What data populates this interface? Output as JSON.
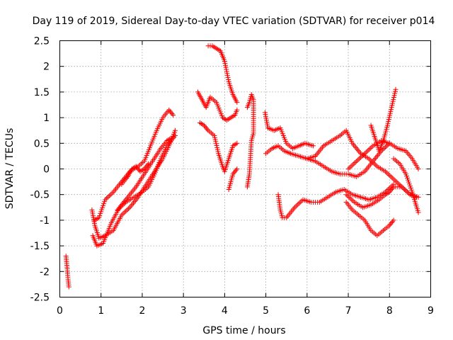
{
  "chart_data": {
    "type": "scatter",
    "title": "Day 119 of 2019, Sidereal Day-to-day VTEC variation (SDTVAR) for receiver p014",
    "xlabel": "GPS time / hours",
    "ylabel": "SDTVAR / TECUs",
    "xlim": [
      0,
      9
    ],
    "ylim": [
      -2.5,
      2.5
    ],
    "xticks": [
      "0",
      "1",
      "2",
      "3",
      "4",
      "5",
      "6",
      "7",
      "8",
      "9"
    ],
    "yticks": [
      "-2.5",
      "-2",
      "-1.5",
      "-1",
      "-0.5",
      "0",
      "0.5",
      "1",
      "1.5",
      "2",
      "2.5"
    ],
    "grid": true,
    "marker": "plus",
    "color": "#ff0000",
    "series": [
      {
        "name": "s1",
        "x": [
          0.15,
          0.18,
          0.2,
          0.22
        ],
        "y": [
          -1.7,
          -1.95,
          -2.15,
          -2.3
        ]
      },
      {
        "name": "s2",
        "x": [
          0.78,
          0.85,
          0.95,
          1.1,
          1.3,
          1.5,
          1.7,
          1.9,
          2.1,
          2.3,
          2.5,
          2.65,
          2.8
        ],
        "y": [
          -0.8,
          -1.1,
          -1.35,
          -1.3,
          -1.2,
          -0.9,
          -0.75,
          -0.55,
          -0.3,
          -0.05,
          0.2,
          0.45,
          0.75
        ]
      },
      {
        "name": "s3",
        "x": [
          0.8,
          0.9,
          1.05,
          1.25,
          1.45,
          1.65,
          1.85,
          2.05,
          2.25,
          2.45,
          2.6,
          2.7
        ],
        "y": [
          -1.3,
          -1.5,
          -1.45,
          -1.05,
          -0.75,
          -0.55,
          -0.35,
          -0.1,
          0.15,
          0.4,
          0.55,
          0.6
        ]
      },
      {
        "name": "s4",
        "x": [
          0.85,
          0.95,
          1.1,
          1.3,
          1.5,
          1.7,
          1.9,
          2.05,
          2.2,
          2.35,
          2.5,
          2.65,
          2.75
        ],
        "y": [
          -1.0,
          -0.95,
          -0.6,
          -0.45,
          -0.25,
          -0.05,
          0.05,
          0.15,
          0.45,
          0.75,
          1.0,
          1.15,
          1.05
        ]
      },
      {
        "name": "s5",
        "x": [
          1.4,
          1.6,
          1.8,
          2.0,
          2.15,
          2.3,
          2.45,
          2.6,
          2.8
        ],
        "y": [
          -0.8,
          -0.65,
          -0.55,
          -0.45,
          -0.35,
          -0.1,
          0.2,
          0.45,
          0.65
        ]
      },
      {
        "name": "s6",
        "x": [
          1.5,
          1.65,
          1.75,
          1.85,
          1.95,
          2.05,
          2.15
        ],
        "y": [
          -0.3,
          -0.15,
          0.0,
          0.05,
          -0.05,
          0.0,
          0.1
        ]
      },
      {
        "name": "s7",
        "x": [
          3.35,
          3.45,
          3.55,
          3.65,
          3.8,
          3.95,
          4.05,
          4.15,
          4.25,
          4.3
        ],
        "y": [
          1.5,
          1.35,
          1.2,
          1.4,
          1.3,
          1.0,
          0.95,
          1.0,
          1.05,
          1.15
        ]
      },
      {
        "name": "s8",
        "x": [
          3.4,
          3.5,
          3.6,
          3.75,
          3.85,
          3.95,
          4.0,
          4.1,
          4.2,
          4.3
        ],
        "y": [
          0.9,
          0.85,
          0.75,
          0.65,
          0.3,
          0.05,
          -0.05,
          0.2,
          0.45,
          0.5
        ]
      },
      {
        "name": "s9",
        "x": [
          3.6,
          3.7,
          3.8,
          3.9,
          4.0,
          4.05,
          4.1,
          4.2,
          4.3
        ],
        "y": [
          2.4,
          2.4,
          2.35,
          2.3,
          2.1,
          1.9,
          1.7,
          1.45,
          1.3
        ]
      },
      {
        "name": "s10",
        "x": [
          4.1,
          4.2,
          4.3
        ],
        "y": [
          -0.4,
          -0.1,
          0.0
        ]
      },
      {
        "name": "s11",
        "x": [
          4.55,
          4.6,
          4.65,
          4.7,
          4.7,
          4.65,
          4.6,
          4.55
        ],
        "y": [
          1.2,
          1.3,
          1.45,
          1.35,
          0.7,
          0.55,
          -0.1,
          -0.35
        ]
      },
      {
        "name": "s12",
        "x": [
          4.98,
          5.05,
          5.2,
          5.35,
          5.5,
          5.65,
          5.8,
          5.95,
          6.15
        ],
        "y": [
          1.1,
          0.8,
          0.75,
          0.8,
          0.5,
          0.4,
          0.45,
          0.5,
          0.45
        ]
      },
      {
        "name": "s13",
        "x": [
          5.0,
          5.15,
          5.3,
          5.45,
          5.6,
          5.8,
          6.0,
          6.2,
          6.4,
          6.6,
          6.8,
          7.0,
          7.2,
          7.4,
          7.6,
          7.8,
          8.0
        ],
        "y": [
          0.3,
          0.4,
          0.45,
          0.35,
          0.3,
          0.25,
          0.2,
          0.15,
          0.05,
          -0.05,
          -0.1,
          -0.1,
          -0.15,
          -0.05,
          0.15,
          0.35,
          0.5
        ]
      },
      {
        "name": "s14",
        "x": [
          5.3,
          5.35,
          5.4,
          5.5,
          5.7,
          5.9,
          6.1,
          6.3,
          6.5,
          6.7,
          6.9,
          7.1,
          7.3,
          7.5,
          7.7,
          7.9,
          8.1
        ],
        "y": [
          -0.5,
          -0.8,
          -0.95,
          -0.95,
          -0.75,
          -0.6,
          -0.65,
          -0.65,
          -0.55,
          -0.45,
          -0.4,
          -0.5,
          -0.55,
          -0.6,
          -0.55,
          -0.45,
          -0.3
        ]
      },
      {
        "name": "s15",
        "x": [
          6.0,
          6.2,
          6.4,
          6.6,
          6.8,
          6.95,
          7.1,
          7.3,
          7.5,
          7.7,
          7.9,
          8.1,
          8.3,
          8.5,
          8.7
        ],
        "y": [
          0.2,
          0.25,
          0.45,
          0.55,
          0.65,
          0.75,
          0.5,
          0.3,
          0.2,
          0.05,
          -0.05,
          -0.2,
          -0.35,
          -0.5,
          -0.55
        ]
      },
      {
        "name": "s16",
        "x": [
          6.95,
          7.1,
          7.25,
          7.4,
          7.55,
          7.7,
          7.85,
          8.0,
          8.1
        ],
        "y": [
          -0.65,
          -0.8,
          -0.9,
          -1.0,
          -1.2,
          -1.3,
          -1.2,
          -1.1,
          -1.0
        ]
      },
      {
        "name": "s17",
        "x": [
          6.95,
          7.15,
          7.35,
          7.55,
          7.75,
          7.9,
          8.0,
          8.1,
          8.3,
          8.5,
          8.65
        ],
        "y": [
          -0.5,
          -0.65,
          -0.75,
          -0.7,
          -0.6,
          -0.5,
          -0.45,
          -0.35,
          -0.35,
          -0.5,
          -0.55
        ]
      },
      {
        "name": "s18",
        "x": [
          7.0,
          7.2,
          7.4,
          7.6,
          7.8,
          8.0,
          8.2,
          8.4,
          8.55,
          8.7
        ],
        "y": [
          0.0,
          0.15,
          0.3,
          0.45,
          0.55,
          0.5,
          0.4,
          0.35,
          0.2,
          0.0
        ]
      },
      {
        "name": "s19",
        "x": [
          7.55,
          7.65,
          7.75,
          7.85,
          7.95,
          8.05,
          8.15
        ],
        "y": [
          0.85,
          0.6,
          0.35,
          0.55,
          0.85,
          1.2,
          1.55
        ]
      },
      {
        "name": "s20",
        "x": [
          8.1,
          8.25,
          8.4,
          8.55,
          8.7
        ],
        "y": [
          0.2,
          0.1,
          -0.1,
          -0.45,
          -0.85
        ]
      }
    ]
  }
}
